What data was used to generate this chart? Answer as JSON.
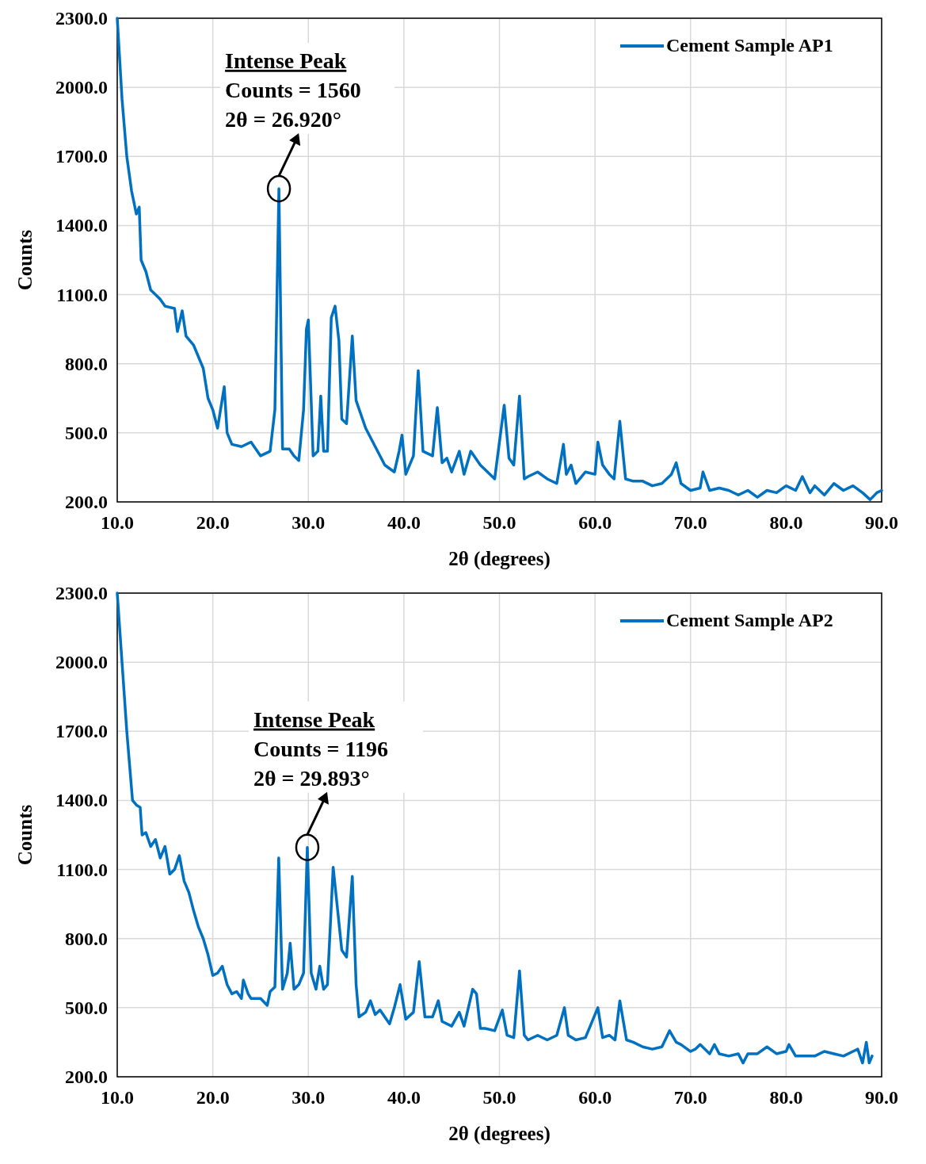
{
  "chart_data": [
    {
      "type": "line",
      "xlabel": "2θ (degrees)",
      "ylabel": "Counts",
      "xlim": [
        10,
        90
      ],
      "ylim": [
        200,
        2300
      ],
      "xticks": [
        {
          "value": 10,
          "label": "10.0"
        },
        {
          "value": 20,
          "label": "20.0"
        },
        {
          "value": 30,
          "label": "30.0"
        },
        {
          "value": 40,
          "label": "40.0"
        },
        {
          "value": 50,
          "label": "50.0"
        },
        {
          "value": 60,
          "label": "60.0"
        },
        {
          "value": 70,
          "label": "70.0"
        },
        {
          "value": 80,
          "label": "80.0"
        },
        {
          "value": 90,
          "label": "90.0"
        }
      ],
      "yticks": [
        {
          "value": 200,
          "label": "200.0"
        },
        {
          "value": 500,
          "label": "500.0"
        },
        {
          "value": 800,
          "label": "800.0"
        },
        {
          "value": 1100,
          "label": "1100.0"
        },
        {
          "value": 1400,
          "label": "1400.0"
        },
        {
          "value": 1700,
          "label": "1700.0"
        },
        {
          "value": 2000,
          "label": "2000.0"
        },
        {
          "value": 2300,
          "label": "2300.0"
        }
      ],
      "grid": true,
      "legend": "top right",
      "annotations": [
        {
          "text": "Intense Peak\nCounts = 1560\n2θ = 26.920°",
          "x": 26.92,
          "y": 1560
        }
      ],
      "series": [
        {
          "name": "Cement Sample AP1",
          "color": "#0070c0",
          "x": [
            10,
            10.5,
            11,
            11.5,
            12,
            12.3,
            12.5,
            13,
            13.5,
            14,
            14.5,
            15,
            16,
            16.3,
            16.8,
            17.2,
            18,
            19,
            19.5,
            20,
            20.5,
            21.2,
            21.5,
            22,
            23,
            24,
            25,
            26,
            26.5,
            26.92,
            27.3,
            28,
            28.5,
            29,
            29.5,
            29.8,
            30,
            30.5,
            31,
            31.3,
            31.6,
            32,
            32.4,
            32.8,
            33.2,
            33.5,
            34,
            34.6,
            35,
            36,
            37,
            38,
            39,
            39.5,
            39.8,
            40.2,
            41,
            41.5,
            42,
            43,
            43.5,
            44,
            44.5,
            45,
            45.8,
            46.3,
            47,
            48,
            48.5,
            49.5,
            50.5,
            51,
            51.5,
            52.1,
            52.6,
            53,
            54,
            55,
            56,
            56.7,
            57,
            57.5,
            58,
            59,
            60,
            60.3,
            60.8,
            61.5,
            62,
            62.6,
            63.2,
            64,
            65,
            66,
            67,
            68,
            68.5,
            69,
            70,
            71,
            71.3,
            72,
            73,
            74,
            75,
            76,
            77,
            78,
            79,
            80,
            81,
            81.7,
            82.5,
            83,
            84,
            85,
            86,
            87,
            88,
            88.8,
            89.5,
            90
          ],
          "values": [
            2300,
            1950,
            1700,
            1550,
            1450,
            1480,
            1250,
            1200,
            1120,
            1100,
            1080,
            1050,
            1040,
            940,
            1030,
            920,
            880,
            780,
            650,
            600,
            520,
            700,
            500,
            450,
            440,
            460,
            400,
            420,
            600,
            1560,
            430,
            430,
            400,
            380,
            600,
            950,
            990,
            400,
            420,
            660,
            420,
            420,
            1000,
            1050,
            900,
            560,
            540,
            920,
            640,
            520,
            440,
            360,
            330,
            420,
            490,
            320,
            400,
            770,
            420,
            400,
            610,
            370,
            390,
            330,
            420,
            320,
            420,
            360,
            340,
            300,
            620,
            390,
            360,
            660,
            300,
            310,
            330,
            300,
            280,
            450,
            320,
            360,
            280,
            330,
            320,
            460,
            360,
            320,
            300,
            550,
            300,
            290,
            290,
            270,
            280,
            320,
            370,
            280,
            250,
            260,
            330,
            250,
            260,
            250,
            230,
            250,
            220,
            250,
            240,
            270,
            250,
            310,
            240,
            270,
            230,
            280,
            250,
            270,
            240,
            210,
            240,
            250
          ]
        }
      ]
    },
    {
      "type": "line",
      "xlabel": "2θ (degrees)",
      "ylabel": "Counts",
      "xlim": [
        10,
        90
      ],
      "ylim": [
        200,
        2300
      ],
      "xticks": [
        {
          "value": 10,
          "label": "10.0"
        },
        {
          "value": 20,
          "label": "20.0"
        },
        {
          "value": 30,
          "label": "30.0"
        },
        {
          "value": 40,
          "label": "40.0"
        },
        {
          "value": 50,
          "label": "50.0"
        },
        {
          "value": 60,
          "label": "60.0"
        },
        {
          "value": 70,
          "label": "70.0"
        },
        {
          "value": 80,
          "label": "80.0"
        },
        {
          "value": 90,
          "label": "90.0"
        }
      ],
      "yticks": [
        {
          "value": 200,
          "label": "200.0"
        },
        {
          "value": 500,
          "label": "500.0"
        },
        {
          "value": 800,
          "label": "800.0"
        },
        {
          "value": 1100,
          "label": "1100.0"
        },
        {
          "value": 1400,
          "label": "1400.0"
        },
        {
          "value": 1700,
          "label": "1700.0"
        },
        {
          "value": 2000,
          "label": "2000.0"
        },
        {
          "value": 2300,
          "label": "2300.0"
        }
      ],
      "grid": true,
      "legend": "top right",
      "annotations": [
        {
          "text": "Intense Peak\nCounts = 1196\n2θ = 29.893°",
          "x": 29.893,
          "y": 1196
        }
      ],
      "series": [
        {
          "name": "Cement Sample AP2",
          "color": "#0070c0",
          "x": [
            10,
            10.5,
            11,
            11.6,
            12,
            12.4,
            12.6,
            13,
            13.5,
            14,
            14.5,
            15,
            15.5,
            16,
            16.5,
            17,
            17.5,
            18,
            18.5,
            19,
            19.5,
            20,
            20.5,
            21,
            21.5,
            22,
            22.5,
            23,
            23.2,
            23.7,
            24,
            25,
            25.7,
            26,
            26.5,
            26.9,
            27.3,
            27.8,
            28.1,
            28.5,
            29,
            29.5,
            29.893,
            30.3,
            30.8,
            31.2,
            31.6,
            32,
            32.6,
            33,
            33.5,
            34,
            34.6,
            35,
            35.3,
            36,
            36.5,
            37,
            37.5,
            38,
            38.5,
            39,
            39.6,
            40.2,
            41,
            41.6,
            42.2,
            43,
            43.6,
            44,
            45,
            45.8,
            46.3,
            47.2,
            47.6,
            48,
            48.5,
            49.5,
            50.3,
            50.8,
            51.5,
            52.1,
            52.6,
            53,
            54,
            55,
            56,
            56.8,
            57.2,
            58,
            59,
            60.3,
            60.8,
            61.5,
            62.1,
            62.6,
            63.3,
            64,
            65,
            66,
            67,
            67.8,
            68.5,
            69,
            70,
            70.5,
            71,
            72,
            72.5,
            73,
            74,
            75,
            75.5,
            76,
            77,
            78,
            79,
            80,
            80.3,
            81,
            82,
            83,
            84,
            85,
            86,
            87,
            87.5,
            88,
            88.4,
            88.7,
            89
          ],
          "values": [
            2300,
            2000,
            1700,
            1400,
            1380,
            1370,
            1250,
            1260,
            1200,
            1230,
            1150,
            1200,
            1080,
            1100,
            1160,
            1050,
            1000,
            920,
            850,
            800,
            730,
            640,
            650,
            680,
            600,
            560,
            570,
            540,
            620,
            560,
            540,
            540,
            510,
            570,
            590,
            1150,
            580,
            650,
            780,
            580,
            600,
            650,
            1196,
            650,
            580,
            680,
            580,
            600,
            1110,
            950,
            750,
            720,
            1070,
            600,
            460,
            480,
            530,
            470,
            490,
            460,
            430,
            500,
            600,
            450,
            480,
            700,
            460,
            460,
            530,
            440,
            420,
            480,
            420,
            580,
            560,
            410,
            410,
            400,
            490,
            380,
            370,
            660,
            380,
            360,
            380,
            360,
            380,
            500,
            380,
            360,
            370,
            500,
            370,
            380,
            360,
            530,
            360,
            350,
            330,
            320,
            330,
            400,
            350,
            340,
            310,
            320,
            340,
            300,
            340,
            300,
            290,
            300,
            260,
            300,
            300,
            330,
            300,
            310,
            340,
            290,
            290,
            290,
            310,
            300,
            290,
            310,
            320,
            260,
            350,
            260,
            290
          ]
        }
      ]
    }
  ]
}
